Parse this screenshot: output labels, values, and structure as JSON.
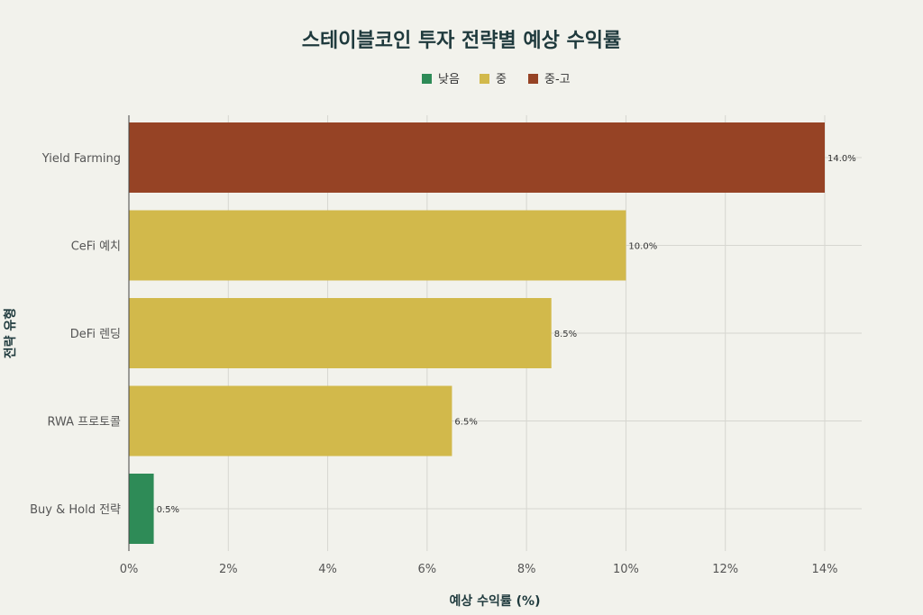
{
  "chart_data": {
    "type": "bar",
    "orientation": "horizontal",
    "title": "스테이블코인 투자 전략별 예상 수익률",
    "xlabel": "예상 수익률 (%)",
    "ylabel": "전략 유형",
    "categories": [
      "Yield Farming",
      "CeFi 예치",
      "DeFi 렌딩",
      "RWA 프로토콜",
      "Buy & Hold 전략"
    ],
    "values": [
      14.0,
      10.0,
      8.5,
      6.5,
      0.5
    ],
    "risk": [
      "중-고",
      "중",
      "중",
      "중",
      "낮음"
    ],
    "data_labels": [
      "14.0%",
      "10.0%",
      "8.5%",
      "6.5%",
      "0.5%"
    ],
    "xlim": [
      0,
      14.8
    ],
    "xticks": [
      0,
      2,
      4,
      6,
      8,
      10,
      12,
      14
    ],
    "xtick_labels": [
      "0%",
      "2%",
      "4%",
      "6%",
      "8%",
      "10%",
      "12%",
      "14%"
    ],
    "grid": true,
    "legend": {
      "placement": "top-center",
      "entries": [
        {
          "name": "낮음",
          "color": "#2e8b57"
        },
        {
          "name": "중",
          "color": "#d2b94b"
        },
        {
          "name": "중-고",
          "color": "#964325"
        }
      ]
    }
  }
}
